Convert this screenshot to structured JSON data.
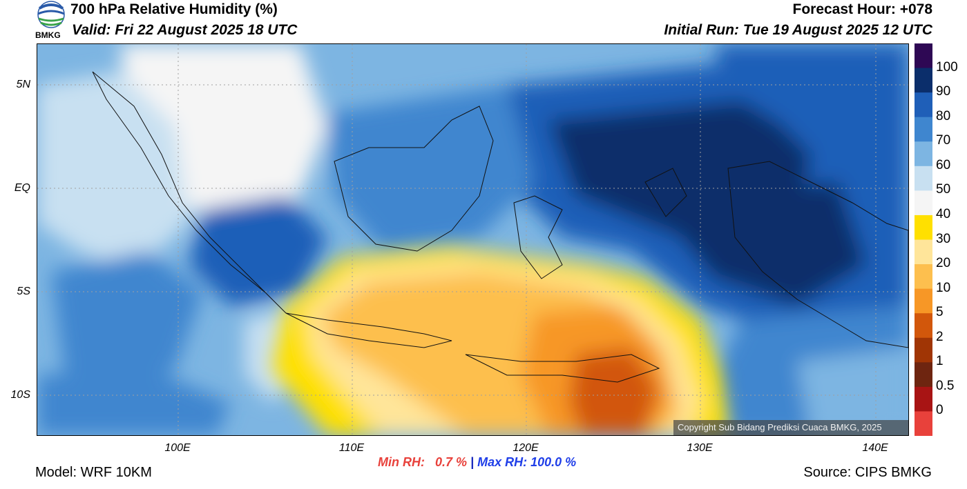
{
  "header": {
    "title": "700 hPa Relative Humidity (%)",
    "valid": "Valid: Fri 22 August 2025 18 UTC",
    "forecast_hour": "Forecast Hour: +078",
    "initial_run": "Initial Run: Tue 19 August 2025 12 UTC"
  },
  "logo": {
    "text": "BMKG",
    "icon": "bmkg-logo"
  },
  "map": {
    "lat_labels": [
      "5N",
      "EQ",
      "5S",
      "10S"
    ],
    "lon_labels": [
      "100E",
      "110E",
      "120E",
      "130E",
      "140E"
    ],
    "copyright": "Copyright Sub Bidang Prediksi Cuaca BMKG, 2025"
  },
  "colorbar": {
    "labels": [
      "100",
      "90",
      "80",
      "70",
      "60",
      "50",
      "40",
      "30",
      "20",
      "10",
      "5",
      "2",
      "1",
      "0.5",
      "0"
    ],
    "colors": [
      "#2e0854",
      "#0b2e6b",
      "#1f5fb8",
      "#3f86cf",
      "#7db5e2",
      "#c8e0f1",
      "#f5f5f5",
      "#ffe000",
      "#ffe59a",
      "#fdbf4e",
      "#f79726",
      "#d2570b",
      "#a03505",
      "#6e2510",
      "#a81414",
      "#e8413b"
    ]
  },
  "stats": {
    "min_label": "Min RH:",
    "min_value": "0.7 %",
    "separator": "|",
    "max_label": "Max RH:",
    "max_value": "100.0 %"
  },
  "footer": {
    "model": "Model: WRF 10KM",
    "source": "Source: CIPS BMKG"
  }
}
